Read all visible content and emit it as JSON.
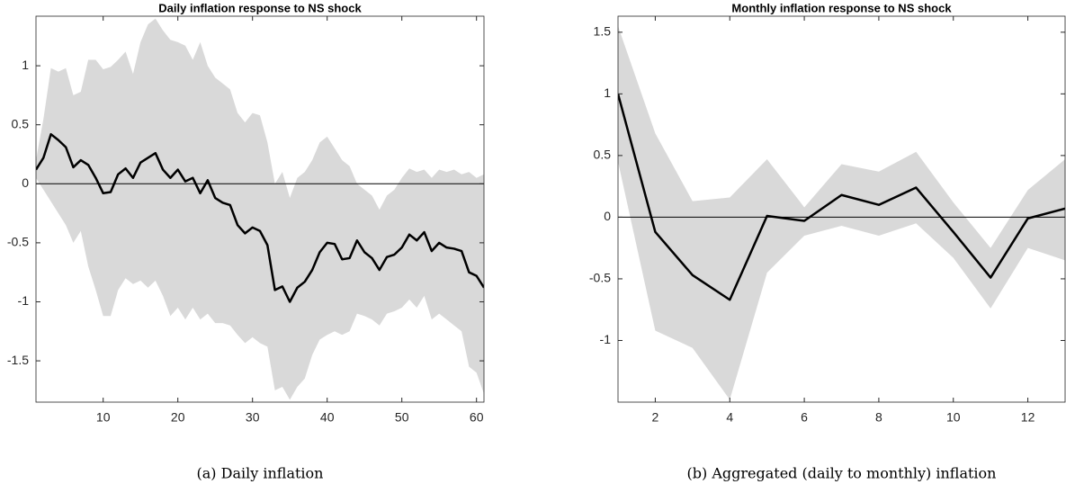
{
  "chart_data": [
    {
      "type": "line",
      "title": "Daily inflation response to NS shock",
      "caption": "(a) Daily inflation",
      "x": [
        1,
        2,
        3,
        4,
        5,
        6,
        7,
        8,
        9,
        10,
        11,
        12,
        13,
        14,
        15,
        16,
        17,
        18,
        19,
        20,
        21,
        22,
        23,
        24,
        25,
        26,
        27,
        28,
        29,
        30,
        31,
        32,
        33,
        34,
        35,
        36,
        37,
        38,
        39,
        40,
        41,
        42,
        43,
        44,
        45,
        46,
        47,
        48,
        49,
        50,
        51,
        52,
        53,
        54,
        55,
        56,
        57,
        58,
        59,
        60,
        61
      ],
      "values": [
        0.12,
        0.22,
        0.42,
        0.37,
        0.31,
        0.14,
        0.2,
        0.16,
        0.05,
        -0.08,
        -0.07,
        0.08,
        0.13,
        0.05,
        0.18,
        0.22,
        0.26,
        0.12,
        0.05,
        0.12,
        0.02,
        0.05,
        -0.08,
        0.03,
        -0.12,
        -0.16,
        -0.18,
        -0.35,
        -0.42,
        -0.37,
        -0.4,
        -0.52,
        -0.9,
        -0.87,
        -1.0,
        -0.88,
        -0.83,
        -0.73,
        -0.58,
        -0.5,
        -0.51,
        -0.64,
        -0.63,
        -0.48,
        -0.58,
        -0.63,
        -0.73,
        -0.62,
        -0.6,
        -0.54,
        -0.43,
        -0.48,
        -0.41,
        -0.57,
        -0.5,
        -0.54,
        -0.55,
        -0.57,
        -0.75,
        -0.78,
        -0.88
      ],
      "color": "#000000",
      "band": {
        "color": "#d9d9d9",
        "upper": [
          0.2,
          0.55,
          0.98,
          0.95,
          0.98,
          0.75,
          0.78,
          1.05,
          1.05,
          0.97,
          0.99,
          1.05,
          1.12,
          0.93,
          1.2,
          1.35,
          1.4,
          1.3,
          1.22,
          1.2,
          1.17,
          1.05,
          1.2,
          1.0,
          0.9,
          0.85,
          0.8,
          0.6,
          0.52,
          0.6,
          0.58,
          0.35,
          0.0,
          0.1,
          -0.12,
          0.05,
          0.1,
          0.2,
          0.35,
          0.4,
          0.3,
          0.2,
          0.15,
          0.0,
          -0.05,
          -0.1,
          -0.22,
          -0.1,
          -0.05,
          0.05,
          0.13,
          0.1,
          0.12,
          0.05,
          0.12,
          0.1,
          0.12,
          0.08,
          0.1,
          0.05,
          0.08
        ],
        "lower": [
          0.05,
          -0.05,
          -0.15,
          -0.25,
          -0.35,
          -0.5,
          -0.4,
          -0.7,
          -0.9,
          -1.12,
          -1.12,
          -0.9,
          -0.8,
          -0.85,
          -0.82,
          -0.88,
          -0.82,
          -0.95,
          -1.12,
          -1.05,
          -1.15,
          -1.05,
          -1.15,
          -1.1,
          -1.18,
          -1.18,
          -1.2,
          -1.28,
          -1.35,
          -1.3,
          -1.35,
          -1.38,
          -1.75,
          -1.72,
          -1.83,
          -1.72,
          -1.65,
          -1.45,
          -1.32,
          -1.28,
          -1.25,
          -1.28,
          -1.25,
          -1.1,
          -1.12,
          -1.15,
          -1.2,
          -1.1,
          -1.08,
          -1.05,
          -0.98,
          -1.05,
          -0.95,
          -1.15,
          -1.1,
          -1.15,
          -1.2,
          -1.25,
          -1.55,
          -1.6,
          -1.78
        ]
      },
      "reference_line": 0,
      "xlim": [
        1,
        61
      ],
      "ylim": [
        -1.85,
        1.42
      ],
      "xticks": [
        10,
        20,
        30,
        40,
        50,
        60
      ],
      "yticks": [
        -1.5,
        -1,
        -0.5,
        0,
        0.5,
        1
      ]
    },
    {
      "type": "line",
      "title": "Monthly inflation response to NS shock",
      "caption": "(b) Aggregated (daily to monthly) inflation",
      "x": [
        1,
        2,
        3,
        4,
        5,
        6,
        7,
        8,
        9,
        10,
        11,
        12,
        13
      ],
      "values": [
        1.0,
        -0.12,
        -0.47,
        -0.67,
        0.01,
        -0.03,
        0.18,
        0.1,
        0.24,
        -0.12,
        -0.49,
        -0.01,
        0.07
      ],
      "color": "#000000",
      "band": {
        "color": "#d9d9d9",
        "upper": [
          1.55,
          0.68,
          0.13,
          0.16,
          0.47,
          0.08,
          0.43,
          0.37,
          0.53,
          0.12,
          -0.25,
          0.22,
          0.47
        ],
        "lower": [
          0.45,
          -0.92,
          -1.06,
          -1.48,
          -0.45,
          -0.15,
          -0.07,
          -0.15,
          -0.05,
          -0.33,
          -0.74,
          -0.25,
          -0.35
        ]
      },
      "reference_line": 0,
      "xlim": [
        1,
        13
      ],
      "ylim": [
        -1.5,
        1.63
      ],
      "xticks": [
        2,
        4,
        6,
        8,
        10,
        12
      ],
      "yticks": [
        -1,
        -0.5,
        0,
        0.5,
        1,
        1.5
      ]
    }
  ]
}
